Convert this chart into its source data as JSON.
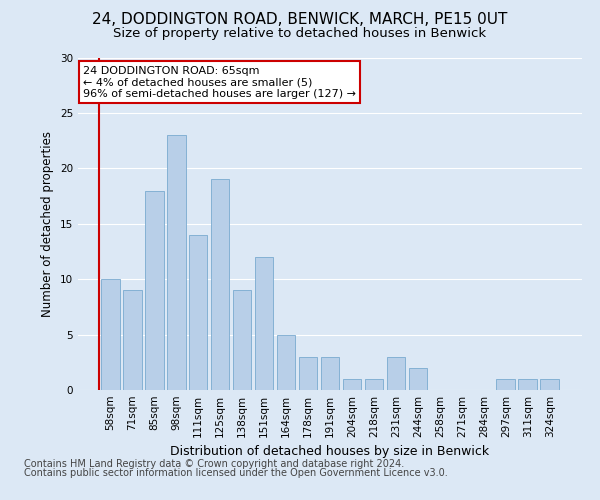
{
  "title1": "24, DODDINGTON ROAD, BENWICK, MARCH, PE15 0UT",
  "title2": "Size of property relative to detached houses in Benwick",
  "xlabel": "Distribution of detached houses by size in Benwick",
  "ylabel": "Number of detached properties",
  "categories": [
    "58sqm",
    "71sqm",
    "85sqm",
    "98sqm",
    "111sqm",
    "125sqm",
    "138sqm",
    "151sqm",
    "164sqm",
    "178sqm",
    "191sqm",
    "204sqm",
    "218sqm",
    "231sqm",
    "244sqm",
    "258sqm",
    "271sqm",
    "284sqm",
    "297sqm",
    "311sqm",
    "324sqm"
  ],
  "values": [
    10,
    9,
    18,
    23,
    14,
    19,
    9,
    12,
    5,
    3,
    3,
    1,
    1,
    3,
    2,
    0,
    0,
    0,
    1,
    1,
    1
  ],
  "bar_color": "#b8cfe8",
  "bar_edge_color": "#7aaad0",
  "highlight_line_color": "#cc0000",
  "annotation_line1": "24 DODDINGTON ROAD: 65sqm",
  "annotation_line2": "← 4% of detached houses are smaller (5)",
  "annotation_line3": "96% of semi-detached houses are larger (127) →",
  "annotation_box_color": "#ffffff",
  "annotation_box_edge_color": "#cc0000",
  "ylim": [
    0,
    30
  ],
  "yticks": [
    0,
    5,
    10,
    15,
    20,
    25,
    30
  ],
  "footnote_line1": "Contains HM Land Registry data © Crown copyright and database right 2024.",
  "footnote_line2": "Contains public sector information licensed under the Open Government Licence v3.0.",
  "bg_color": "#dce8f5",
  "plot_bg_color": "#dce8f5",
  "title1_fontsize": 11,
  "title2_fontsize": 9.5,
  "xlabel_fontsize": 9,
  "ylabel_fontsize": 8.5,
  "tick_fontsize": 7.5,
  "annotation_fontsize": 8,
  "footnote_fontsize": 7
}
